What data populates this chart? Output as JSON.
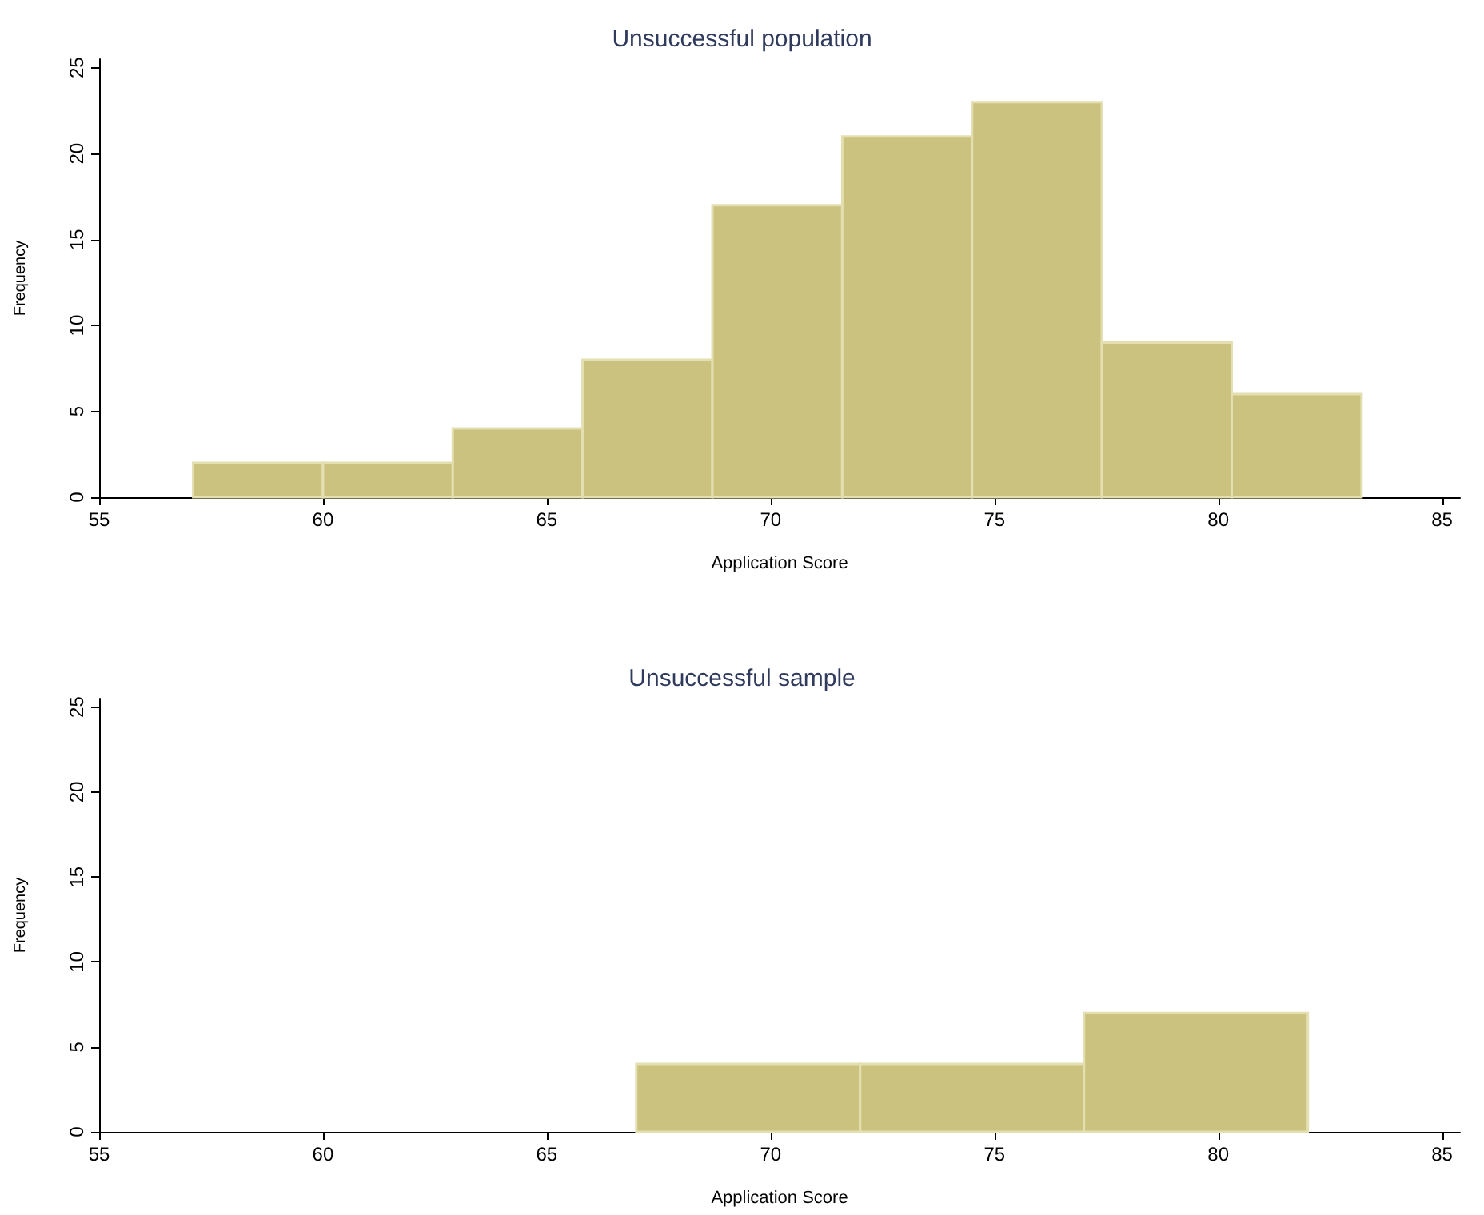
{
  "chart_data": [
    {
      "type": "histogram",
      "title": "Unsuccessful population",
      "xlabel": "Application Score",
      "ylabel": "Frequency",
      "bins": [
        57.1,
        60,
        62.9,
        65.8,
        68.7,
        71.6,
        74.5,
        77.4,
        80.3,
        83.2
      ],
      "values": [
        2,
        2,
        4,
        8,
        17,
        21,
        23,
        9,
        6
      ],
      "color": "#ccc27f",
      "xlim": [
        55,
        85.4
      ],
      "xticks": [
        55,
        60,
        65,
        70,
        75,
        80,
        85
      ],
      "ylim": [
        0,
        25.5
      ],
      "yticks": [
        0,
        5,
        10,
        15,
        20,
        25
      ],
      "grid": false
    },
    {
      "type": "histogram",
      "title": "Unsuccessful sample",
      "xlabel": "Application Score",
      "ylabel": "Frequency",
      "bins": [
        67,
        72,
        77,
        82
      ],
      "values": [
        4,
        4,
        7
      ],
      "color": "#ccc27f",
      "xlim": [
        55,
        85.4
      ],
      "xticks": [
        55,
        60,
        65,
        70,
        75,
        80,
        85
      ],
      "ylim": [
        0,
        25.5
      ],
      "yticks": [
        0,
        5,
        10,
        15,
        20,
        25
      ],
      "grid": false
    }
  ]
}
